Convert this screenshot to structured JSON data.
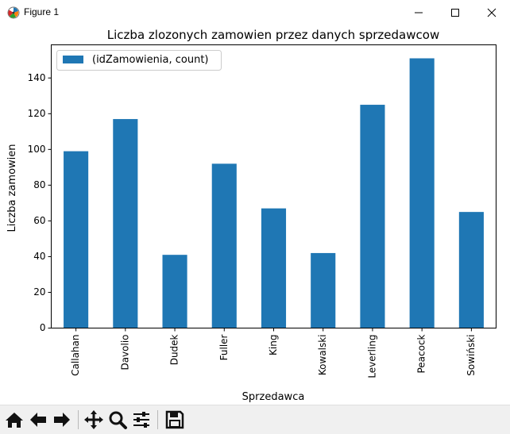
{
  "window": {
    "title": "Figure 1",
    "app_icon": "matplotlib-icon",
    "controls": [
      "minimize-icon",
      "maximize-icon",
      "close-icon"
    ]
  },
  "toolbar": {
    "buttons": [
      {
        "name": "home-button",
        "icon": "home-icon"
      },
      {
        "name": "back-button",
        "icon": "arrow-left-icon"
      },
      {
        "name": "forward-button",
        "icon": "arrow-right-icon"
      },
      {
        "name": "pan-button",
        "icon": "move-icon"
      },
      {
        "name": "zoom-button",
        "icon": "magnifier-icon"
      },
      {
        "name": "subplots-button",
        "icon": "sliders-icon"
      },
      {
        "name": "save-button",
        "icon": "floppy-disk-icon"
      }
    ]
  },
  "chart_data": {
    "type": "bar",
    "title": "Liczba zlozonych zamowien przez danych sprzedawcow",
    "xlabel": "Sprzedawca",
    "ylabel": "Liczba zamowien",
    "categories": [
      "Callahan",
      "Davolio",
      "Dudek",
      "Fuller",
      "King",
      "Kowalski",
      "Leverling",
      "Peacock",
      "Sowiński"
    ],
    "series": [
      {
        "name": "(idZamowienia, count)",
        "values": [
          99,
          117,
          41,
          92,
          67,
          42,
          125,
          151,
          65
        ],
        "color": "#1f77b4"
      }
    ],
    "ylim": [
      0,
      158.55
    ],
    "yticks": [
      "0",
      "20",
      "40",
      "60",
      "80",
      "100",
      "120",
      "140"
    ],
    "legend_position": "top-left",
    "grid": false
  }
}
